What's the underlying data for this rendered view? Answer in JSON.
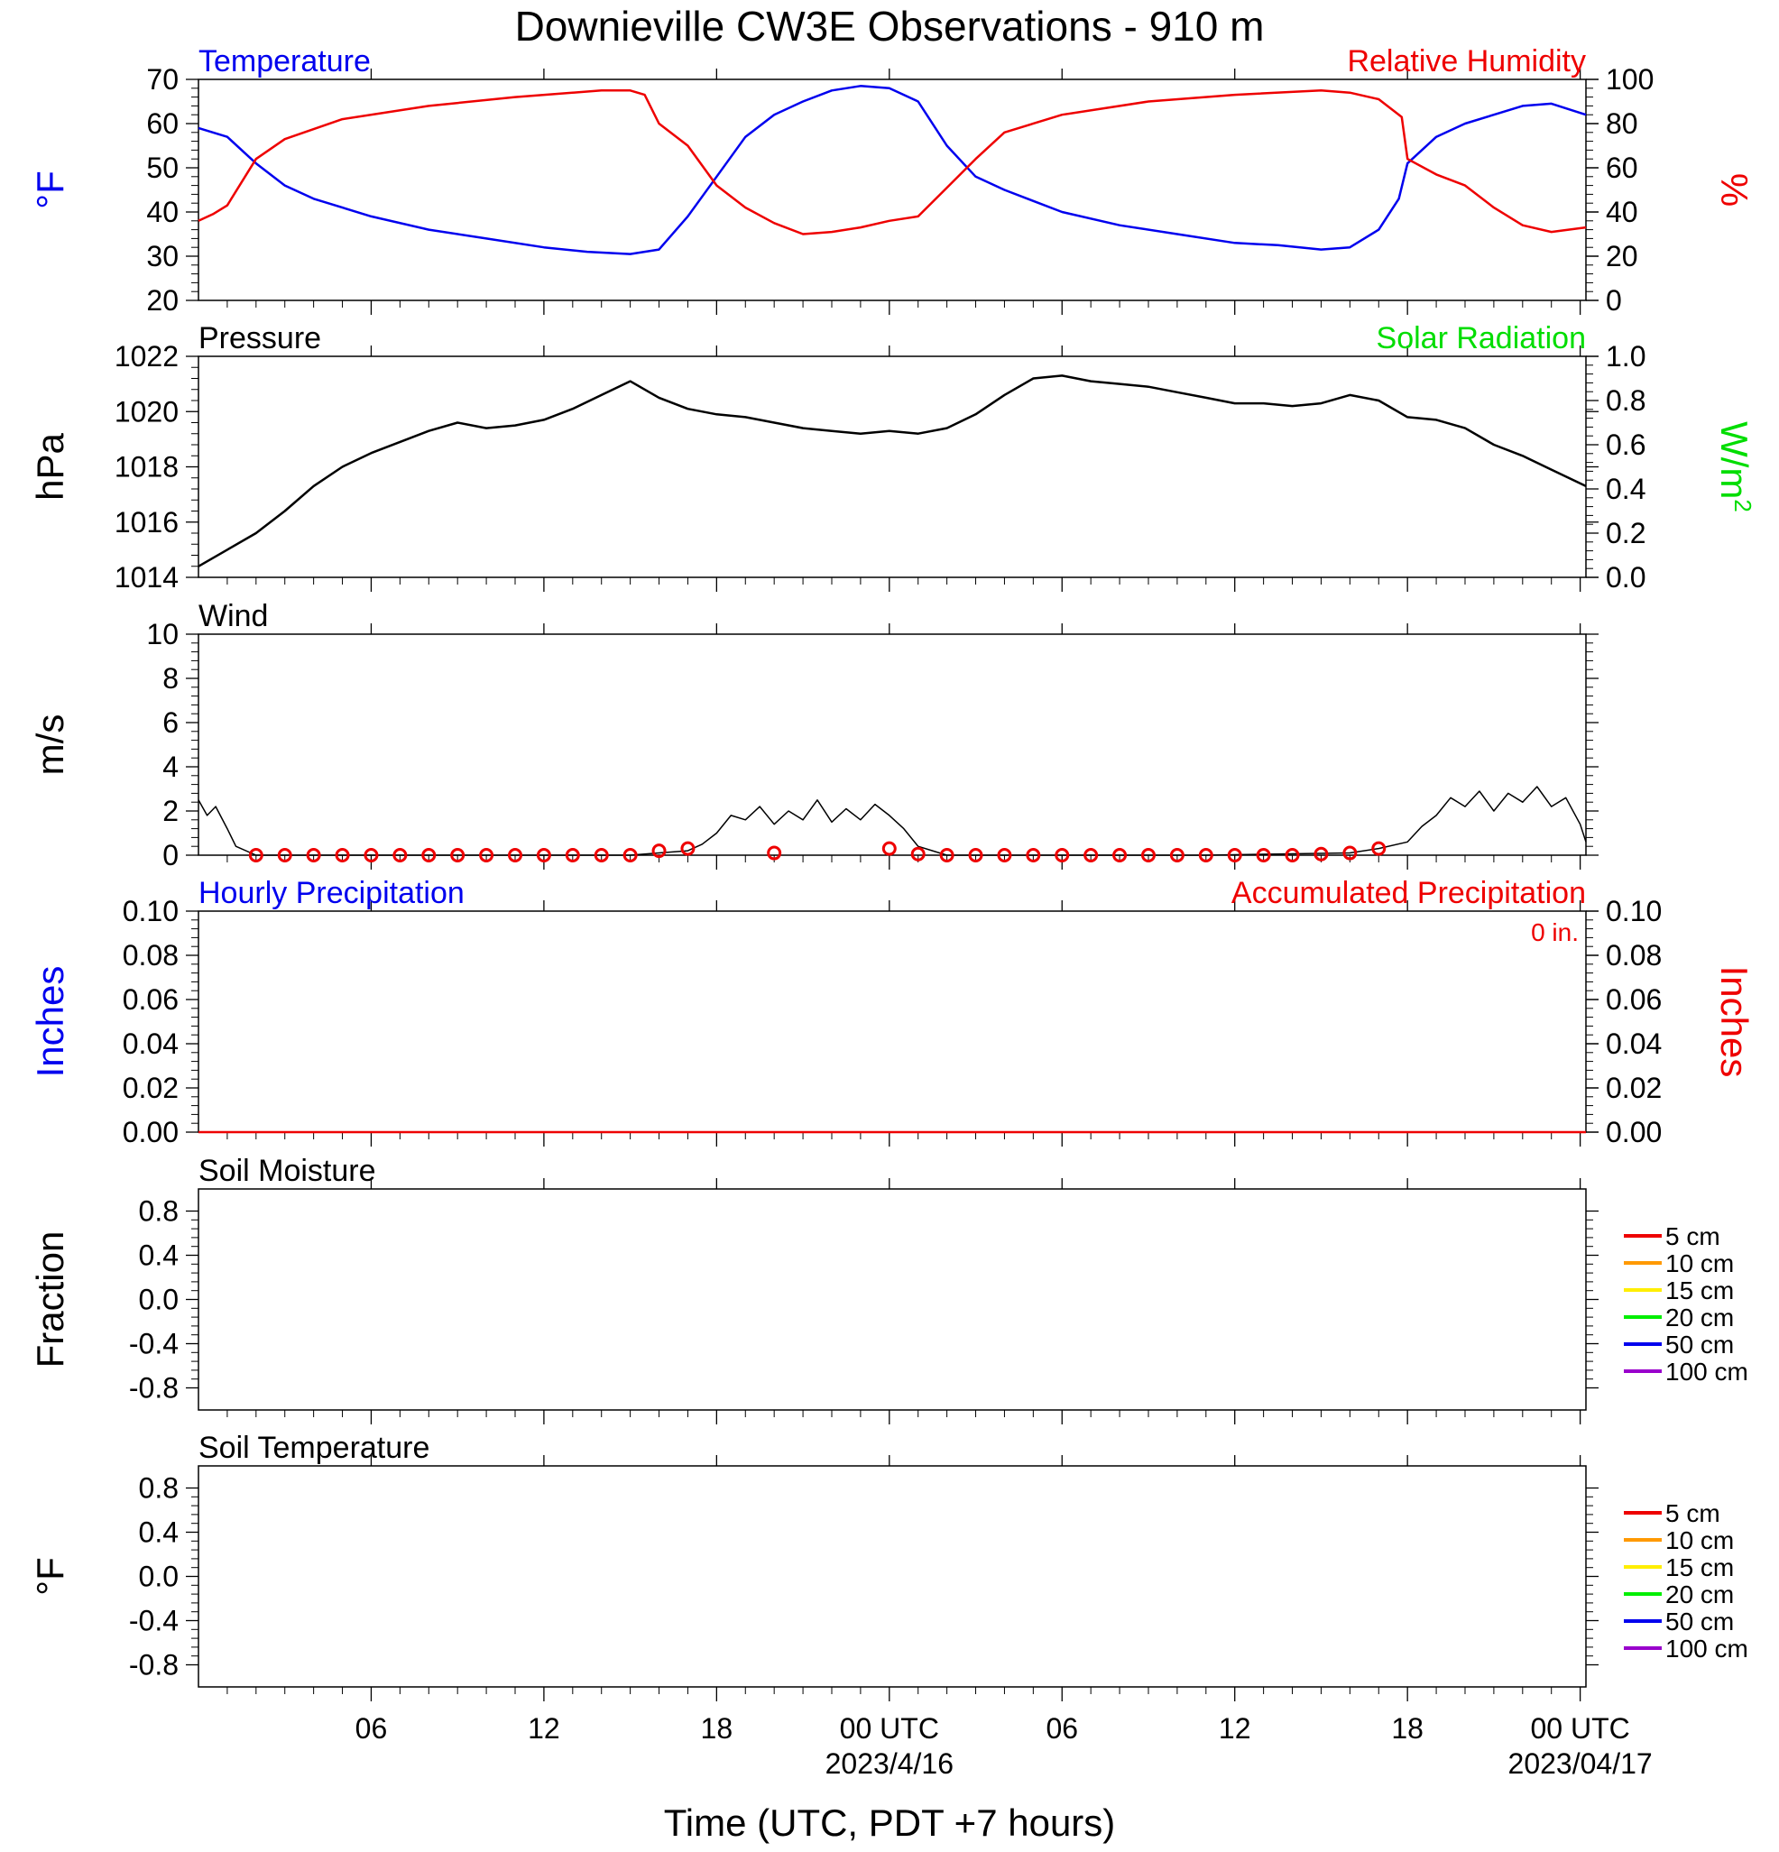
{
  "figure": {
    "title": "Downieville CW3E Observations - 910 m",
    "x_axis_title": "Time (UTC, PDT +7 hours)",
    "x_ticks": [
      {
        "hour": 6,
        "label": "06"
      },
      {
        "hour": 12,
        "label": "12"
      },
      {
        "hour": 18,
        "label": "18"
      },
      {
        "hour": 24,
        "label": "00 UTC",
        "sublabel": "2023/4/16"
      },
      {
        "hour": 30,
        "label": "06"
      },
      {
        "hour": 36,
        "label": "12"
      },
      {
        "hour": 42,
        "label": "18"
      },
      {
        "hour": 48,
        "label": "00 UTC",
        "sublabel": "2023/04/17"
      }
    ],
    "colors": {
      "temperature": "#0000ee",
      "humidity": "#ee0000",
      "pressure": "#000000",
      "solar": "#00dd00",
      "wind": "#000000",
      "wind_barb": "#ee0000",
      "hourly_precip": "#0000ee",
      "accum_precip": "#ee0000"
    }
  },
  "chart_data": [
    {
      "id": "temp_rh",
      "type": "line",
      "title_left": "Temperature",
      "title_right": "Relative Humidity",
      "ylabel_left": "°F",
      "ylabel_right": "%",
      "xlim": [
        0,
        48.2
      ],
      "ylim_left": [
        20,
        70
      ],
      "ylim_right": [
        0,
        100
      ],
      "yticks_left": [
        "20",
        "30",
        "40",
        "50",
        "60",
        "70"
      ],
      "yticks_right": [
        "0",
        "20",
        "40",
        "60",
        "80",
        "100"
      ],
      "series": [
        {
          "name": "Temperature",
          "axis": "left",
          "color": "#0000ee",
          "x": [
            0,
            1,
            2,
            3,
            4,
            6,
            8,
            10,
            12,
            13.5,
            15,
            16,
            17,
            18,
            19,
            20,
            21,
            22,
            23,
            24,
            25,
            26,
            27,
            28,
            30,
            32,
            34,
            36,
            37.5,
            39,
            40,
            41,
            41.7,
            42,
            43,
            44,
            45,
            46,
            47,
            48.2
          ],
          "y": [
            59,
            57,
            51,
            46,
            43,
            39,
            36,
            34,
            32,
            31,
            30.5,
            31.5,
            39,
            48,
            57,
            62,
            65,
            67.5,
            68.5,
            68,
            65,
            55,
            48,
            45,
            40,
            37,
            35,
            33,
            32.5,
            31.5,
            32,
            36,
            43,
            51,
            57,
            60,
            62,
            64,
            64.5,
            62
          ]
        },
        {
          "name": "Relative Humidity",
          "axis": "right",
          "color": "#ee0000",
          "x": [
            0,
            0.5,
            1,
            2,
            3,
            5,
            8,
            11,
            14,
            15,
            15.5,
            16,
            17,
            18,
            19,
            20,
            21,
            22,
            23,
            24,
            25,
            26,
            27,
            28,
            30,
            33,
            36,
            39,
            40,
            41,
            41.8,
            42,
            43,
            44,
            45,
            46,
            47,
            48.2
          ],
          "y": [
            36,
            39,
            43,
            64,
            73,
            82,
            88,
            92,
            95,
            95,
            93,
            80,
            70,
            52,
            42,
            35,
            30,
            31,
            33,
            36,
            38,
            51,
            64,
            76,
            84,
            90,
            93,
            95,
            94,
            91,
            83,
            64,
            57,
            52,
            42,
            34,
            31,
            33
          ]
        }
      ]
    },
    {
      "id": "pressure_solar",
      "type": "line",
      "title_left": "Pressure",
      "title_right": "Solar Radiation",
      "ylabel_left": "hPa",
      "ylabel_right": "W/m",
      "ylabel_right_sup": "2",
      "xlim": [
        0,
        48.2
      ],
      "ylim_left": [
        1014,
        1022
      ],
      "ylim_right": [
        0,
        1
      ],
      "yticks_left": [
        "1014",
        "1016",
        "1018",
        "1020",
        "1022"
      ],
      "yticks_right": [
        "0.0",
        "0.2",
        "0.4",
        "0.6",
        "0.8",
        "1.0"
      ],
      "series": [
        {
          "name": "Pressure",
          "axis": "left",
          "color": "#000000",
          "x": [
            0,
            1,
            2,
            3,
            4,
            5,
            6,
            7,
            8,
            9,
            10,
            11,
            12,
            13,
            14,
            15,
            16,
            17,
            18,
            19,
            20,
            21,
            22,
            23,
            24,
            25,
            26,
            27,
            28,
            29,
            30,
            31,
            32,
            33,
            34,
            35,
            36,
            37,
            38,
            39,
            40,
            41,
            42,
            43,
            44,
            45,
            46,
            47,
            48.2
          ],
          "y": [
            1014.4,
            1015.0,
            1015.6,
            1016.4,
            1017.3,
            1018.0,
            1018.5,
            1018.9,
            1019.3,
            1019.6,
            1019.4,
            1019.5,
            1019.7,
            1020.1,
            1020.6,
            1021.1,
            1020.5,
            1020.1,
            1019.9,
            1019.8,
            1019.6,
            1019.4,
            1019.3,
            1019.2,
            1019.3,
            1019.2,
            1019.4,
            1019.9,
            1020.6,
            1021.2,
            1021.3,
            1021.1,
            1021.0,
            1020.9,
            1020.7,
            1020.5,
            1020.3,
            1020.3,
            1020.2,
            1020.3,
            1020.6,
            1020.4,
            1019.8,
            1019.7,
            1019.4,
            1018.8,
            1018.4,
            1017.9,
            1017.3
          ]
        }
      ]
    },
    {
      "id": "wind",
      "type": "line",
      "title_left": "Wind",
      "ylabel_left": "m/s",
      "xlim": [
        0,
        48.2
      ],
      "ylim_left": [
        0,
        10
      ],
      "yticks_left": [
        "0",
        "2",
        "4",
        "6",
        "8",
        "10"
      ],
      "series": [
        {
          "name": "Wind speed",
          "axis": "left",
          "color": "#000000",
          "x": [
            0,
            0.3,
            0.6,
            1,
            1.3,
            2,
            5,
            10,
            15,
            16,
            17,
            17.5,
            18,
            18.5,
            19,
            19.5,
            20,
            20.5,
            21,
            21.5,
            22,
            22.5,
            23,
            23.5,
            24,
            24.5,
            25,
            25.5,
            26,
            27,
            30,
            35,
            40,
            41,
            42,
            42.5,
            43,
            43.5,
            44,
            44.5,
            45,
            45.5,
            46,
            46.5,
            47,
            47.5,
            48,
            48.2
          ],
          "y": [
            2.5,
            1.8,
            2.2,
            1.2,
            0.4,
            0,
            0,
            0,
            0,
            0.1,
            0.2,
            0.5,
            1.0,
            1.8,
            1.6,
            2.2,
            1.4,
            2.0,
            1.6,
            2.5,
            1.5,
            2.1,
            1.6,
            2.3,
            1.8,
            1.2,
            0.4,
            0.2,
            0,
            0,
            0,
            0,
            0.1,
            0.3,
            0.6,
            1.3,
            1.8,
            2.6,
            2.2,
            2.9,
            2.0,
            2.8,
            2.4,
            3.1,
            2.2,
            2.6,
            1.4,
            0.6
          ]
        },
        {
          "name": "Wind barbs",
          "axis": "left",
          "color": "#ee0000",
          "kind": "markers",
          "x": [
            2,
            3,
            4,
            5,
            6,
            7,
            8,
            9,
            10,
            11,
            12,
            13,
            14,
            15,
            16,
            17,
            20,
            24,
            25,
            26,
            27,
            28,
            29,
            30,
            31,
            32,
            33,
            34,
            35,
            36,
            37,
            38,
            39,
            40,
            41
          ],
          "y": [
            0,
            0,
            0,
            0,
            0,
            0,
            0,
            0,
            0,
            0,
            0,
            0,
            0,
            0,
            0.2,
            0.3,
            0.1,
            0.3,
            0.05,
            0,
            0,
            0,
            0,
            0,
            0,
            0,
            0,
            0,
            0,
            0,
            0,
            0,
            0.05,
            0.1,
            0.3
          ]
        }
      ]
    },
    {
      "id": "precip",
      "type": "line",
      "title_left": "Hourly Precipitation",
      "title_right": "Accumulated Precipitation",
      "annotation": "0 in.",
      "ylabel_left": "Inches",
      "ylabel_right": "Inches",
      "xlim": [
        0,
        48.2
      ],
      "ylim_left": [
        0,
        0.1
      ],
      "ylim_right": [
        0,
        0.1
      ],
      "yticks_left": [
        "0.00",
        "0.02",
        "0.04",
        "0.06",
        "0.08",
        "0.10"
      ],
      "yticks_right": [
        "0.00",
        "0.02",
        "0.04",
        "0.06",
        "0.08",
        "0.10"
      ],
      "series": [
        {
          "name": "Accumulated Precipitation",
          "axis": "right",
          "color": "#ee0000",
          "x": [
            0,
            48.2
          ],
          "y": [
            0,
            0
          ]
        }
      ]
    },
    {
      "id": "soil_moisture",
      "type": "line",
      "title_left": "Soil Moisture",
      "ylabel_left": "Fraction",
      "xlim": [
        0,
        48.2
      ],
      "ylim_left": [
        -1,
        1
      ],
      "yticks_left": [
        "-0.8",
        "-0.4",
        "0.0",
        "0.4",
        "0.8"
      ],
      "legend": [
        {
          "label": "5 cm",
          "color": "#ee0000"
        },
        {
          "label": "10 cm",
          "color": "#ff9900"
        },
        {
          "label": "15 cm",
          "color": "#ffee00"
        },
        {
          "label": "20 cm",
          "color": "#00ee00"
        },
        {
          "label": "50 cm",
          "color": "#0000ee"
        },
        {
          "label": "100 cm",
          "color": "#9900cc"
        }
      ],
      "series": []
    },
    {
      "id": "soil_temperature",
      "type": "line",
      "title_left": "Soil Temperature",
      "ylabel_left": "°F",
      "xlim": [
        0,
        48.2
      ],
      "ylim_left": [
        -1,
        1
      ],
      "yticks_left": [
        "-0.8",
        "-0.4",
        "0.0",
        "0.4",
        "0.8"
      ],
      "legend": [
        {
          "label": "5 cm",
          "color": "#ee0000"
        },
        {
          "label": "10 cm",
          "color": "#ff9900"
        },
        {
          "label": "15 cm",
          "color": "#ffee00"
        },
        {
          "label": "20 cm",
          "color": "#00ee00"
        },
        {
          "label": "50 cm",
          "color": "#0000ee"
        },
        {
          "label": "100 cm",
          "color": "#9900cc"
        }
      ],
      "series": []
    }
  ]
}
